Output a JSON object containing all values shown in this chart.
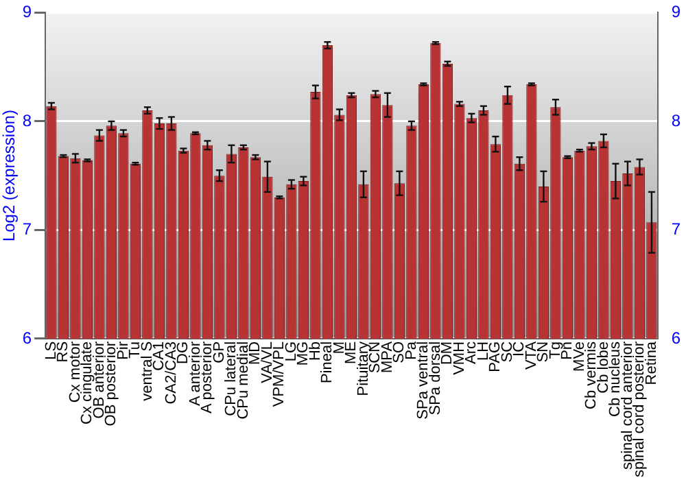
{
  "chart_data": {
    "type": "bar",
    "ylabel": "Log2 (expression)",
    "categories": [
      "LS",
      "RS",
      "Cx motor",
      "Cx cingulate",
      "OB anterior",
      "OB posterior",
      "Pir",
      "Tu",
      "ventral S",
      "CA1",
      "CA2/CA3",
      "DG",
      "A anterior",
      "A posterior",
      "GP",
      "CPu lateral",
      "CPu medial",
      "MD",
      "VA/VL",
      "VPM/VPL",
      "LG",
      "MG",
      "Hb",
      "Pineal",
      "M",
      "ME",
      "Pituitary",
      "SCN",
      "MPA",
      "SO",
      "Pa",
      "SPa ventral",
      "SPa dorsal",
      "DM",
      "VMH",
      "Arc",
      "LH",
      "PAG",
      "SC",
      "IC",
      "VTA",
      "SN",
      "Tg",
      "Pn",
      "MVe",
      "Cb vermis",
      "Cb lobe",
      "Cb nucleus",
      "spinal cord anterior",
      "spinal cord posterior",
      "Retina"
    ],
    "values": [
      8.14,
      7.68,
      7.66,
      7.64,
      7.87,
      7.96,
      7.89,
      7.61,
      8.1,
      7.98,
      7.98,
      7.73,
      7.89,
      7.78,
      7.5,
      7.7,
      7.76,
      7.67,
      7.49,
      7.3,
      7.42,
      7.45,
      8.27,
      8.7,
      8.06,
      8.24,
      7.42,
      8.25,
      8.15,
      7.43,
      7.96,
      8.34,
      8.72,
      8.53,
      8.16,
      8.03,
      8.1,
      7.79,
      8.24,
      7.61,
      8.34,
      7.4,
      8.13,
      7.67,
      7.73,
      7.77,
      7.82,
      7.45,
      7.52,
      7.58,
      7.07
    ],
    "errors": [
      0.03,
      0.01,
      0.04,
      0.01,
      0.05,
      0.04,
      0.03,
      0.01,
      0.03,
      0.05,
      0.06,
      0.02,
      0.01,
      0.04,
      0.05,
      0.08,
      0.02,
      0.02,
      0.14,
      0.01,
      0.04,
      0.04,
      0.06,
      0.03,
      0.05,
      0.02,
      0.12,
      0.03,
      0.11,
      0.11,
      0.04,
      0.01,
      0.01,
      0.02,
      0.02,
      0.04,
      0.04,
      0.07,
      0.08,
      0.06,
      0.01,
      0.14,
      0.07,
      0.01,
      0.01,
      0.03,
      0.06,
      0.16,
      0.11,
      0.07,
      0.28
    ],
    "color": "#b83333",
    "ylim": [
      6,
      9
    ],
    "yticks": [
      6,
      7,
      8,
      9
    ],
    "y2lim": [
      6,
      9
    ],
    "y2ticks": [
      6,
      7,
      8,
      9
    ],
    "grid": "y",
    "legend": false
  }
}
